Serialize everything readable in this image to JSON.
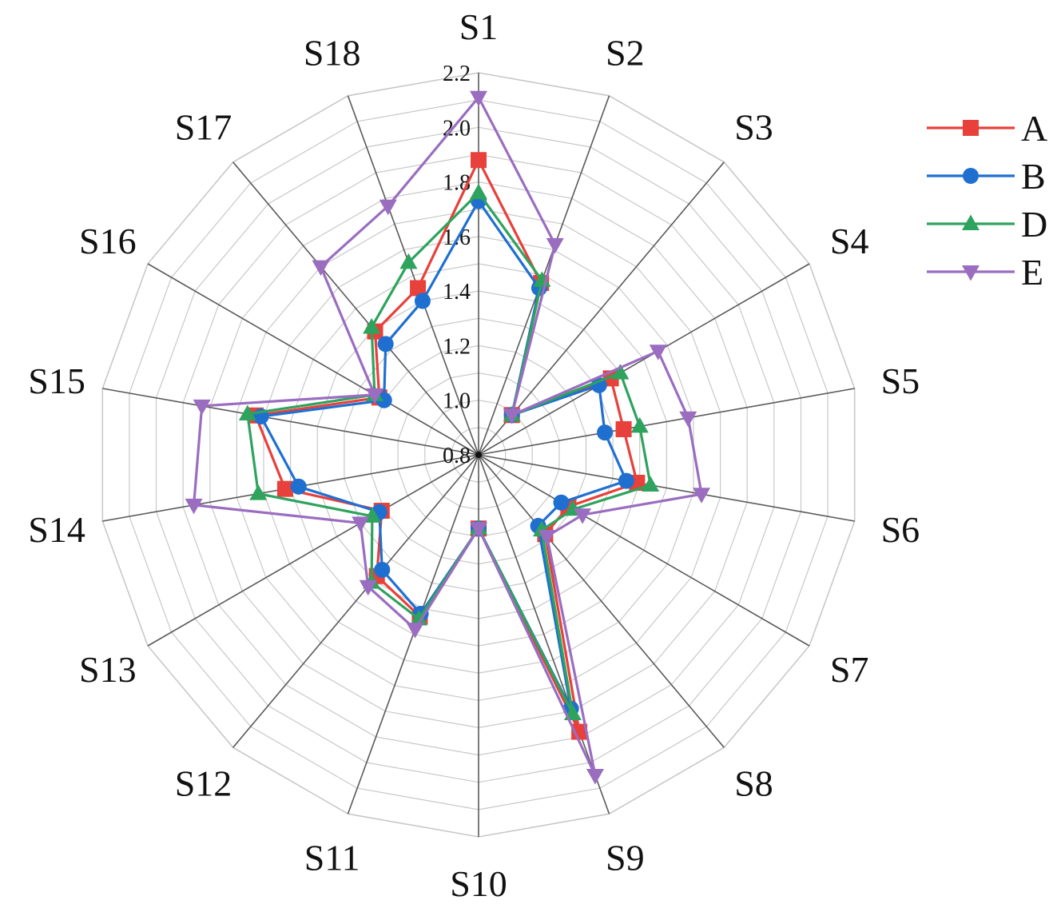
{
  "chart_data": {
    "type": "radar",
    "title": "",
    "categories": [
      "S1",
      "S2",
      "S3",
      "S4",
      "S5",
      "S6",
      "S7",
      "S8",
      "S9",
      "S10",
      "S11",
      "S12",
      "S13",
      "S14",
      "S15",
      "S16",
      "S17",
      "S18"
    ],
    "ticks": [
      "0.8",
      "1.0",
      "1.2",
      "1.4",
      "1.6",
      "1.8",
      "2.0",
      "2.2"
    ],
    "rlim": [
      0.8,
      2.2
    ],
    "grid": true,
    "legend_position": "top-right",
    "series": [
      {
        "name": "A",
        "color": "#e8403a",
        "marker": "square",
        "values": [
          1.88,
          1.47,
          0.99,
          1.36,
          1.34,
          1.39,
          1.18,
          1.18,
          1.88,
          1.07,
          1.43,
          1.38,
          1.21,
          1.52,
          1.63,
          1.22,
          1.39,
          1.45
        ]
      },
      {
        "name": "B",
        "color": "#1f6fd1",
        "marker": "circle",
        "values": [
          1.73,
          1.45,
          0.99,
          1.31,
          1.27,
          1.35,
          1.15,
          1.14,
          1.79,
          1.07,
          1.42,
          1.35,
          1.22,
          1.47,
          1.61,
          1.2,
          1.33,
          1.4
        ]
      },
      {
        "name": "D",
        "color": "#2ea35d",
        "marker": "triangle-up",
        "values": [
          1.76,
          1.48,
          0.99,
          1.4,
          1.4,
          1.44,
          1.2,
          1.16,
          1.81,
          1.07,
          1.44,
          1.41,
          1.25,
          1.62,
          1.66,
          1.24,
          1.41,
          1.55
        ]
      },
      {
        "name": "E",
        "color": "#9a6dc0",
        "marker": "triangle-down",
        "values": [
          2.11,
          1.62,
          0.99,
          1.56,
          1.58,
          1.63,
          1.24,
          1.19,
          2.05,
          1.07,
          1.48,
          1.43,
          1.3,
          1.86,
          1.83,
          1.24,
          1.7,
          1.77
        ]
      }
    ]
  }
}
